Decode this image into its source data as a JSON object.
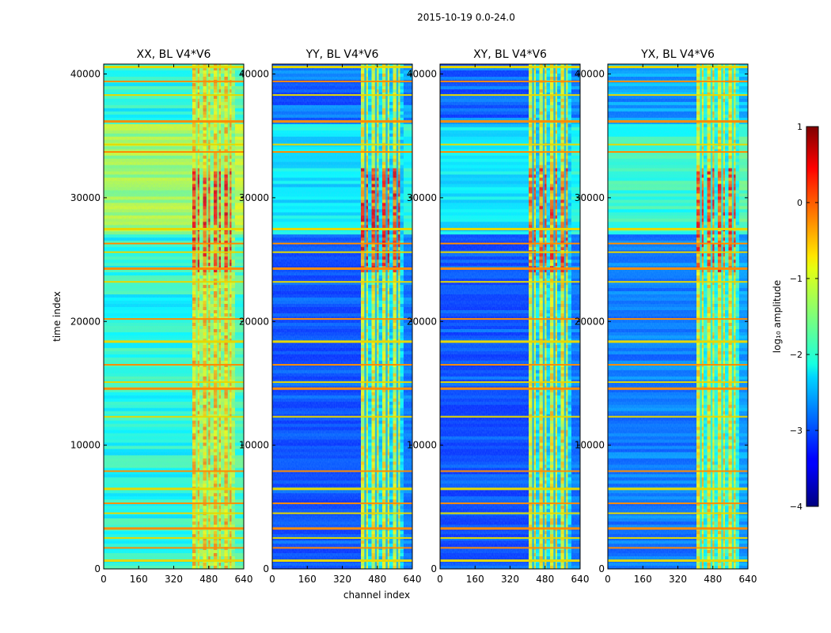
{
  "chart_data": {
    "type": "heatmap",
    "suptitle": "2015-10-19 0.0-24.0",
    "xlabel": "channel index",
    "ylabel": "time index",
    "xlim": [
      0,
      640
    ],
    "ylim": [
      0,
      40800
    ],
    "xticks": [
      "0",
      "160",
      "320",
      "480",
      "640"
    ],
    "xtick_values": [
      0,
      160,
      320,
      480,
      640
    ],
    "yticks": [
      "0",
      "10000",
      "20000",
      "30000",
      "40000"
    ],
    "ytick_values": [
      0,
      10000,
      20000,
      30000,
      40000
    ],
    "panels": [
      {
        "title": "XX, BL V4*V6",
        "background_level": -2.0,
        "band_level": -0.7,
        "burst_level": 0.6,
        "quiet_level": -2.6
      },
      {
        "title": "YY, BL V4*V6",
        "background_level": -2.9,
        "band_level": -1.0,
        "burst_level": 0.6,
        "quiet_level": -3.2
      },
      {
        "title": "XY, BL V4*V6",
        "background_level": -2.9,
        "band_level": -0.9,
        "burst_level": 0.4,
        "quiet_level": -3.2
      },
      {
        "title": "YX, BL V4*V6",
        "background_level": -2.6,
        "band_level": -0.9,
        "burst_level": 0.5,
        "quiet_level": -3.0
      }
    ],
    "active_band_channels": [
      405,
      600
    ],
    "enhanced_time_ranges": [
      [
        24000,
        32500
      ]
    ],
    "flagged_time_rows": [
      700,
      1700,
      2500,
      3300,
      4500,
      5300,
      6500,
      7900,
      12300,
      14600,
      15100,
      16500,
      18400,
      20200,
      23200,
      24300,
      25600,
      26300,
      27500,
      33700,
      34300,
      36200,
      38300,
      39400,
      40600
    ],
    "colorbar": {
      "label": "log₁₀ amplitude",
      "range": [
        -4,
        1
      ],
      "ticks": [
        "1",
        "0",
        "−1",
        "−2",
        "−3",
        "−4"
      ],
      "tick_values": [
        1,
        0,
        -1,
        -2,
        -3,
        -4
      ],
      "colormap": "jet"
    }
  }
}
